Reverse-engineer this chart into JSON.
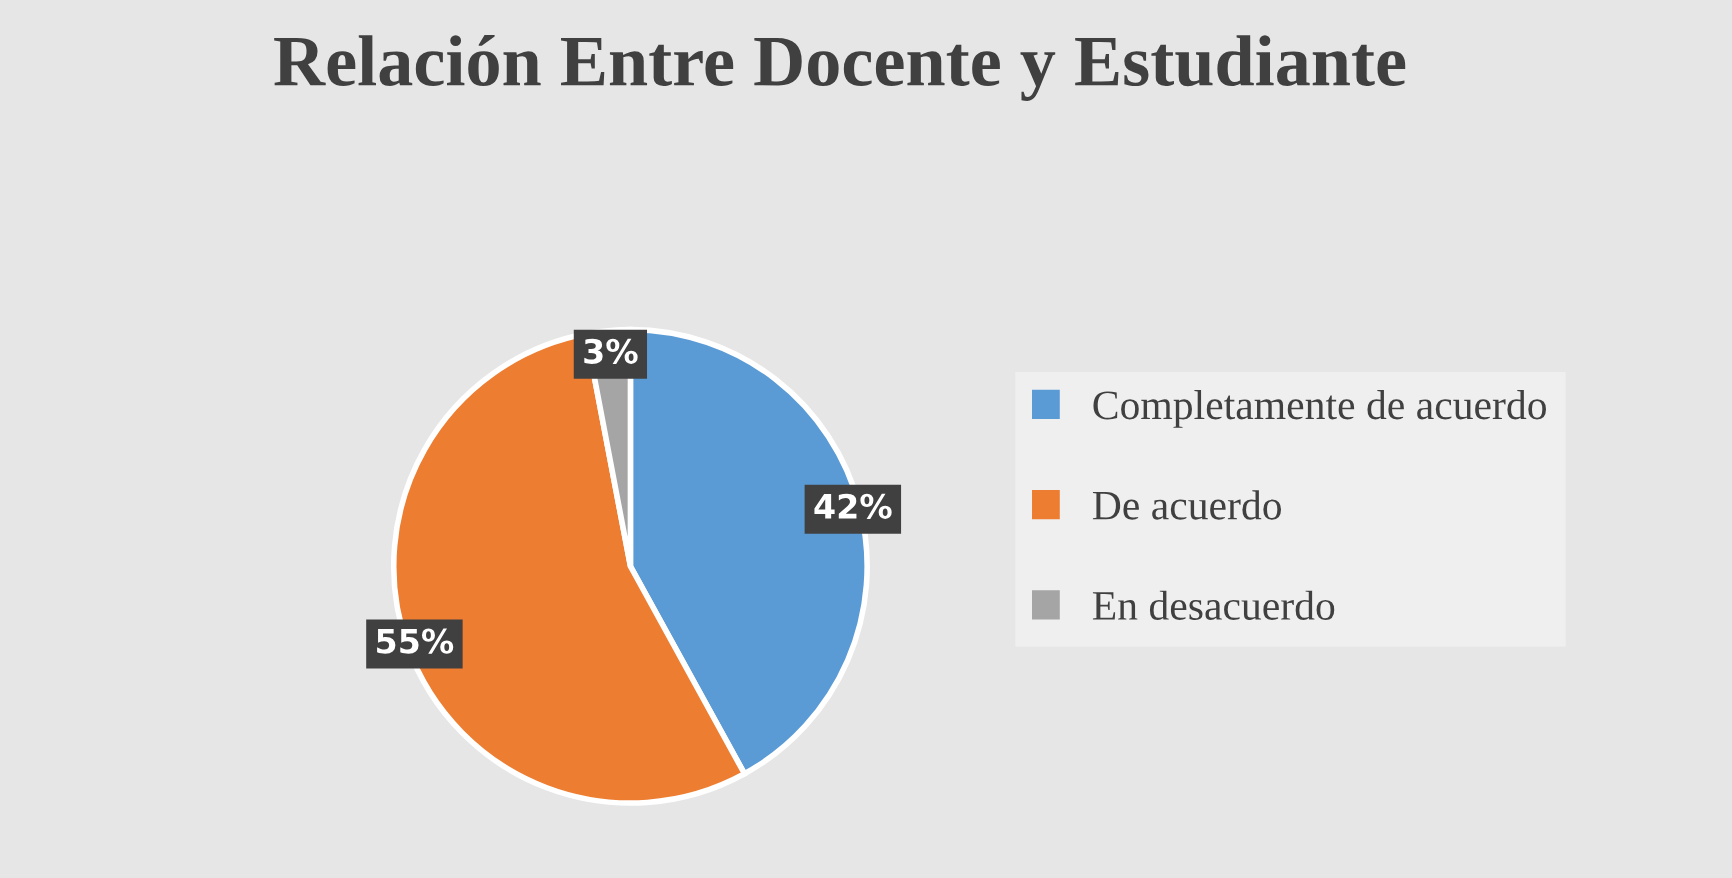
{
  "chart_data": {
    "type": "pie",
    "title": "Relación Entre Docente y Estudiante",
    "categories": [
      "Completamente de acuerdo",
      "De acuerdo",
      "En desacuerdo"
    ],
    "values": [
      42,
      55,
      3
    ],
    "colors": [
      "#5b9bd5",
      "#ed7d31",
      "#a5a5a5"
    ],
    "value_labels": [
      "42%",
      "55%",
      "3%"
    ],
    "legend": "right"
  }
}
